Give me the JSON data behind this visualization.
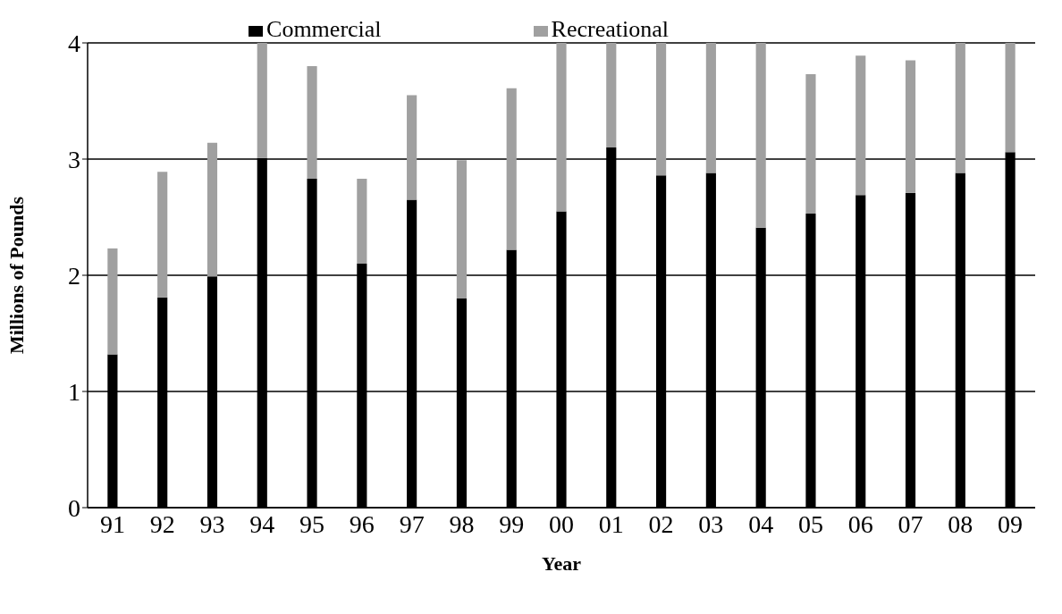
{
  "chart_data": {
    "type": "bar",
    "stacked": true,
    "xlabel": "Year",
    "ylabel": "Millions of Pounds",
    "categories": [
      "91",
      "92",
      "93",
      "94",
      "95",
      "96",
      "97",
      "98",
      "99",
      "00",
      "01",
      "02",
      "03",
      "04",
      "05",
      "06",
      "07",
      "08",
      "09"
    ],
    "series": [
      {
        "name": "Commercial",
        "color": "#000000",
        "values": [
          1.32,
          1.81,
          1.99,
          3.01,
          2.83,
          2.1,
          2.65,
          1.8,
          2.22,
          2.55,
          3.1,
          2.86,
          2.88,
          2.41,
          2.53,
          2.69,
          2.71,
          2.88,
          3.06
        ]
      },
      {
        "name": "Recreational",
        "color": "#a0a0a0",
        "values": [
          0.91,
          1.08,
          1.15,
          0.99,
          0.97,
          0.73,
          0.9,
          1.19,
          1.39,
          1.45,
          0.9,
          1.14,
          1.12,
          1.59,
          1.2,
          1.2,
          1.14,
          1.12,
          0.94
        ]
      }
    ],
    "ylim": [
      0,
      4
    ],
    "yticks": [
      0,
      1,
      2,
      3,
      4
    ],
    "grid": "y",
    "legend": "top"
  }
}
